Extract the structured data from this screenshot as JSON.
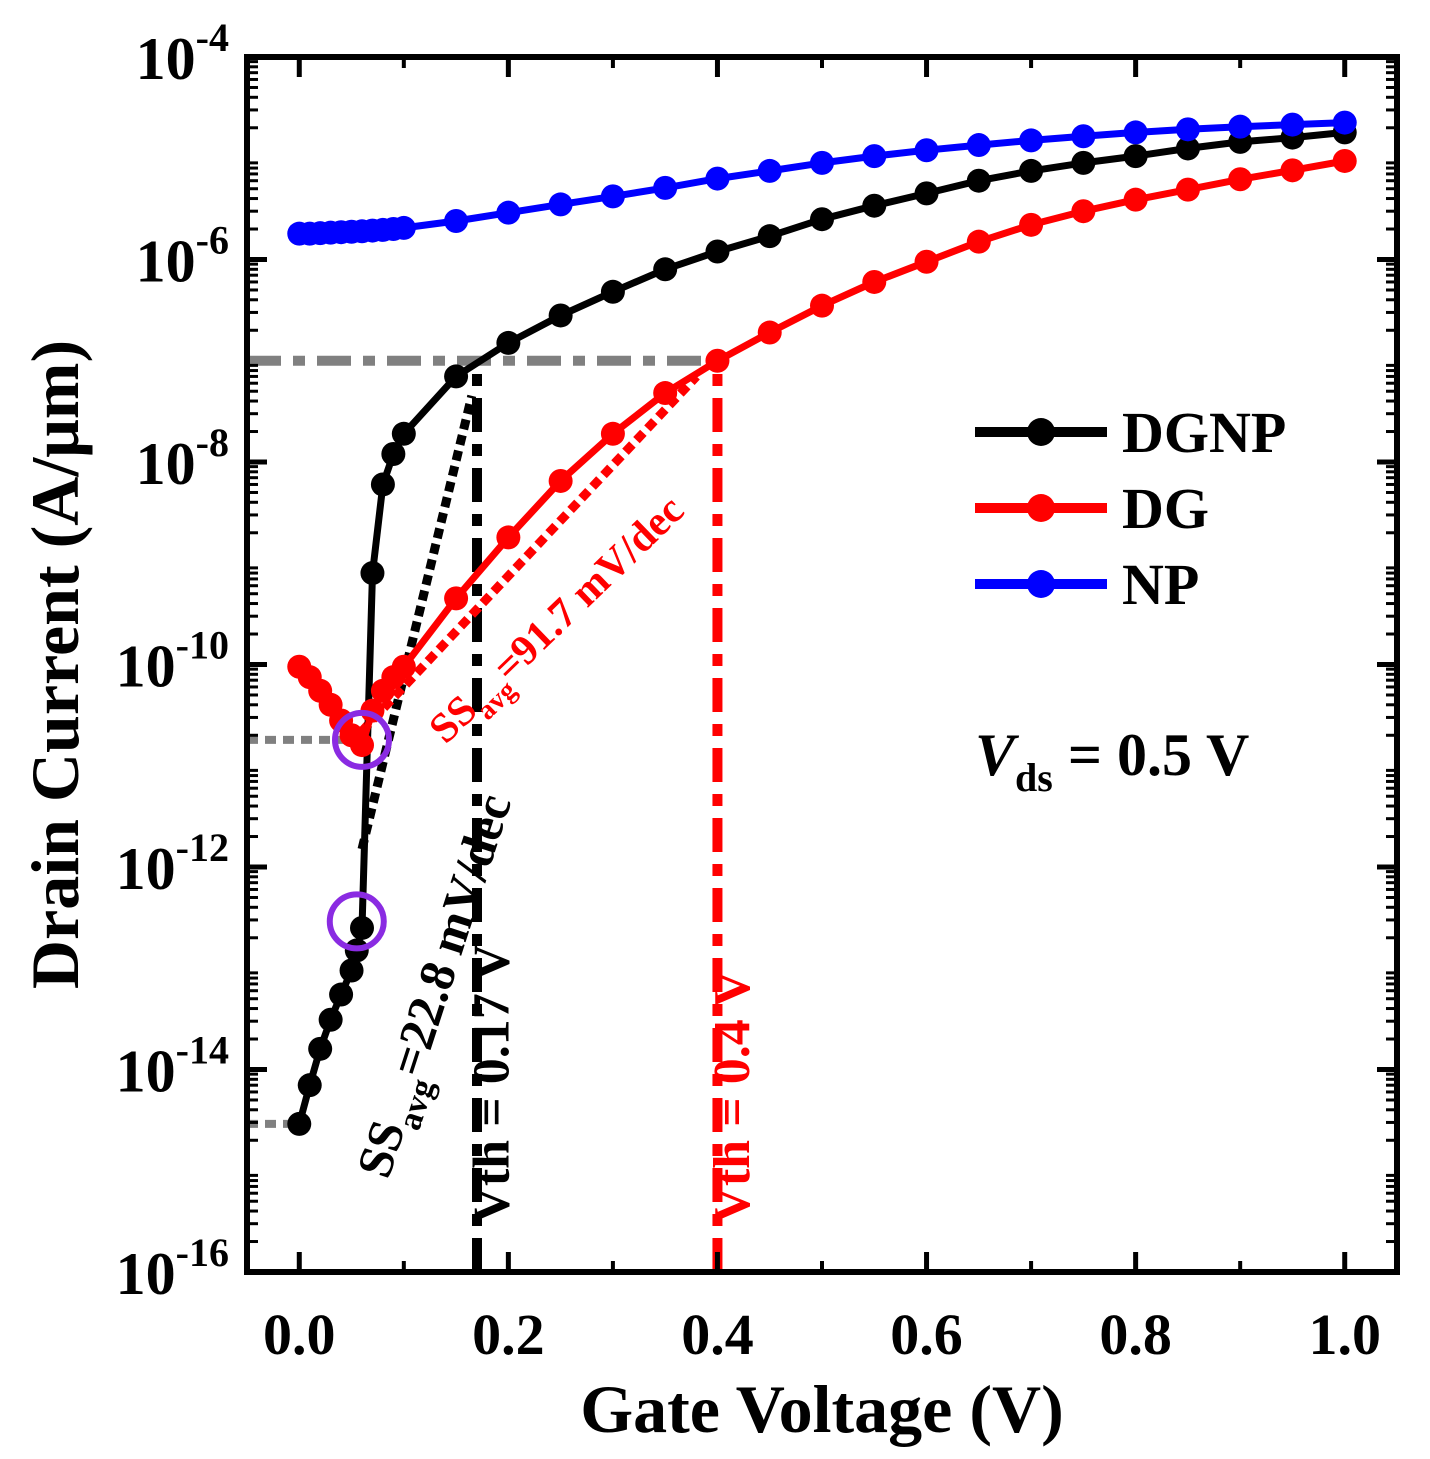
{
  "chart_data": {
    "type": "line",
    "title": "",
    "xlabel": "Gate Voltage (V)",
    "ylabel": "Drain Current (A/μm)",
    "xscale": "linear",
    "yscale": "log",
    "xlim": [
      -0.05,
      1.05
    ],
    "ylim_exp": [
      -16,
      -4
    ],
    "x_ticks": [
      {
        "value": 0.0,
        "label": "0.0"
      },
      {
        "value": 0.2,
        "label": "0.2"
      },
      {
        "value": 0.4,
        "label": "0.4"
      },
      {
        "value": 0.6,
        "label": "0.6"
      },
      {
        "value": 0.8,
        "label": "0.8"
      },
      {
        "value": 1.0,
        "label": "1.0"
      }
    ],
    "y_ticks": [
      {
        "exp": -4,
        "base": "10",
        "sup": "-4"
      },
      {
        "exp": -6,
        "base": "10",
        "sup": "-6"
      },
      {
        "exp": -8,
        "base": "10",
        "sup": "-8"
      },
      {
        "exp": -10,
        "base": "10",
        "sup": "-10"
      },
      {
        "exp": -12,
        "base": "10",
        "sup": "-12"
      },
      {
        "exp": -14,
        "base": "10",
        "sup": "-14"
      },
      {
        "exp": -16,
        "base": "10",
        "sup": "-16"
      }
    ],
    "legend_position": "right",
    "series": [
      {
        "name": "DGNP",
        "color": "#000000",
        "x": [
          0.0,
          0.01,
          0.02,
          0.03,
          0.04,
          0.05,
          0.055,
          0.06,
          0.07,
          0.08,
          0.09,
          0.1,
          0.15,
          0.2,
          0.25,
          0.3,
          0.35,
          0.4,
          0.45,
          0.5,
          0.55,
          0.6,
          0.65,
          0.7,
          0.75,
          0.8,
          0.85,
          0.9,
          0.95,
          1.0
        ],
        "y": [
          2.9e-15,
          7e-15,
          1.6e-14,
          3.1e-14,
          5.5e-14,
          9.5e-14,
          1.5e-13,
          2.5e-13,
          8e-10,
          6e-09,
          1.2e-08,
          1.9e-08,
          7e-08,
          1.5e-07,
          2.8e-07,
          4.8e-07,
          8e-07,
          1.2e-06,
          1.7e-06,
          2.5e-06,
          3.4e-06,
          4.5e-06,
          6e-06,
          7.5e-06,
          9e-06,
          1.05e-05,
          1.25e-05,
          1.45e-05,
          1.6e-05,
          1.8e-05
        ]
      },
      {
        "name": "DG",
        "color": "#ff0000",
        "x": [
          0.0,
          0.01,
          0.02,
          0.03,
          0.04,
          0.05,
          0.06,
          0.07,
          0.08,
          0.09,
          0.1,
          0.15,
          0.2,
          0.25,
          0.3,
          0.35,
          0.4,
          0.45,
          0.5,
          0.55,
          0.6,
          0.65,
          0.7,
          0.75,
          0.8,
          0.85,
          0.9,
          0.95,
          1.0
        ],
        "y": [
          9.5e-11,
          7.5e-11,
          5.5e-11,
          4e-11,
          2.8e-11,
          2e-11,
          1.6e-11,
          3.5e-11,
          5.5e-11,
          7.5e-11,
          9.5e-11,
          4.5e-10,
          1.8e-09,
          6.5e-09,
          1.9e-08,
          4.8e-08,
          1e-07,
          1.9e-07,
          3.5e-07,
          6e-07,
          9.5e-07,
          1.5e-06,
          2.2e-06,
          3e-06,
          3.9e-06,
          4.9e-06,
          6.2e-06,
          7.6e-06,
          9.4e-06
        ]
      },
      {
        "name": "NP",
        "color": "#0000ff",
        "x": [
          0.0,
          0.01,
          0.02,
          0.03,
          0.04,
          0.05,
          0.06,
          0.07,
          0.08,
          0.09,
          0.1,
          0.15,
          0.2,
          0.25,
          0.3,
          0.35,
          0.4,
          0.45,
          0.5,
          0.55,
          0.6,
          0.65,
          0.7,
          0.75,
          0.8,
          0.85,
          0.9,
          0.95,
          1.0
        ],
        "y": [
          1.8e-06,
          1.8e-06,
          1.82e-06,
          1.84e-06,
          1.86e-06,
          1.88e-06,
          1.9e-06,
          1.93e-06,
          1.96e-06,
          2e-06,
          2.05e-06,
          2.4e-06,
          2.9e-06,
          3.5e-06,
          4.2e-06,
          5.1e-06,
          6.3e-06,
          7.5e-06,
          9e-06,
          1.05e-05,
          1.2e-05,
          1.35e-05,
          1.5e-05,
          1.65e-05,
          1.8e-05,
          1.93e-05,
          2.05e-05,
          2.15e-05,
          2.25e-05
        ]
      }
    ],
    "reference_lines": [
      {
        "name": "vth-line-dgnp",
        "orientation": "vertical",
        "x": 0.17,
        "y_from": 1e-16,
        "y_to": 1e-07,
        "color": "#000000",
        "style": "dash-dot"
      },
      {
        "name": "vth-line-dg",
        "orientation": "vertical",
        "x": 0.4,
        "y_from": 1e-16,
        "y_to": 1e-07,
        "color": "#ff0000",
        "style": "dash-dot"
      },
      {
        "name": "current-level-1e-7",
        "orientation": "horizontal",
        "y": 1e-07,
        "x_from": -0.05,
        "x_to": 0.4,
        "color": "#808080",
        "style": "dash-dot"
      },
      {
        "name": "current-level-ioff-dg",
        "orientation": "horizontal",
        "y": 1.8e-11,
        "x_from": -0.05,
        "x_to": 0.06,
        "color": "#808080",
        "style": "dotted"
      },
      {
        "name": "current-level-ioff-dgnp",
        "orientation": "horizontal",
        "y": 2.9e-15,
        "x_from": -0.05,
        "x_to": 0.0,
        "color": "#808080",
        "style": "dotted"
      }
    ],
    "slope_lines": [
      {
        "name": "ss-slope-dgnp",
        "x_from": 0.06,
        "y_from": 1.5e-12,
        "x_to": 0.165,
        "y_to": 4.5e-08,
        "color": "#000000"
      },
      {
        "name": "ss-slope-dg",
        "x_from": 0.06,
        "y_from": 2.2e-11,
        "x_to": 0.38,
        "y_to": 7e-08,
        "color": "#ff0000"
      }
    ],
    "markers": [
      {
        "name": "marker-circle-dg-min",
        "x": 0.06,
        "y": 1.8e-11,
        "color": "#8a2be2"
      },
      {
        "name": "marker-circle-dgnp",
        "x": 0.055,
        "y": 2.9e-13,
        "color": "#8a2be2"
      }
    ],
    "annotations": {
      "vth_dgnp": {
        "text": "Vth = 0.17 V",
        "color": "#000000",
        "x": 0.2,
        "y": 3e-16,
        "rotation": -90
      },
      "vth_dg": {
        "text": "Vth = 0.4 V",
        "color": "#ff0000",
        "x": 0.43,
        "y": 3e-16,
        "rotation": -90
      },
      "ss_dgnp": {
        "main": "SS",
        "sub": "avg",
        "rest": "=22.8 mV/dec",
        "color": "#000000",
        "x": 0.085,
        "y": 8e-16,
        "rotation": -72
      },
      "ss_dg": {
        "main": "SS",
        "sub": "avg",
        "rest": "=91.7 mV/dec",
        "color": "#ff0000",
        "x": 0.14,
        "y": 1.6e-11,
        "rotation": -44
      },
      "vds": {
        "italic": "V",
        "sub": "ds",
        "rest": " = 0.5 V",
        "color": "#000000"
      }
    }
  }
}
